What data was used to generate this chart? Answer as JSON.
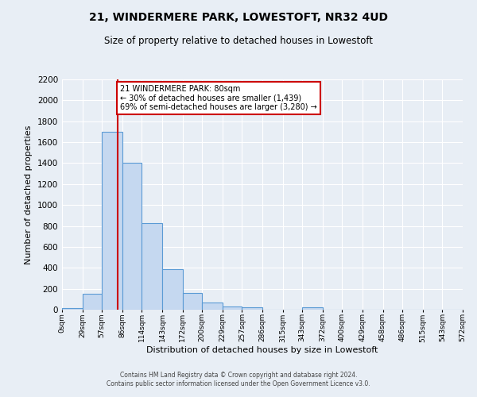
{
  "title": "21, WINDERMERE PARK, LOWESTOFT, NR32 4UD",
  "subtitle": "Size of property relative to detached houses in Lowestoft",
  "xlabel": "Distribution of detached houses by size in Lowestoft",
  "ylabel": "Number of detached properties",
  "bar_color": "#c5d8f0",
  "bar_edge_color": "#5b9bd5",
  "background_color": "#e8eef5",
  "bin_edges": [
    0,
    29,
    57,
    86,
    114,
    143,
    172,
    200,
    229,
    257,
    286,
    315,
    343,
    372,
    400,
    429,
    458,
    486,
    515,
    543,
    572
  ],
  "bin_labels": [
    "0sqm",
    "29sqm",
    "57sqm",
    "86sqm",
    "114sqm",
    "143sqm",
    "172sqm",
    "200sqm",
    "229sqm",
    "257sqm",
    "286sqm",
    "315sqm",
    "343sqm",
    "372sqm",
    "400sqm",
    "429sqm",
    "458sqm",
    "486sqm",
    "515sqm",
    "543sqm",
    "572sqm"
  ],
  "counts": [
    15,
    155,
    1700,
    1400,
    830,
    385,
    160,
    65,
    30,
    20,
    0,
    0,
    20,
    0,
    0,
    0,
    0,
    0,
    0,
    0
  ],
  "property_size": 80,
  "vline_x": 80,
  "vline_color": "#cc0000",
  "annotation_line1": "21 WINDERMERE PARK: 80sqm",
  "annotation_line2": "← 30% of detached houses are smaller (1,439)",
  "annotation_line3": "69% of semi-detached houses are larger (3,280) →",
  "annotation_box_color": "white",
  "annotation_box_edge": "#cc0000",
  "ylim": [
    0,
    2200
  ],
  "yticks": [
    0,
    200,
    400,
    600,
    800,
    1000,
    1200,
    1400,
    1600,
    1800,
    2000,
    2200
  ],
  "footer_line1": "Contains HM Land Registry data © Crown copyright and database right 2024.",
  "footer_line2": "Contains public sector information licensed under the Open Government Licence v3.0."
}
